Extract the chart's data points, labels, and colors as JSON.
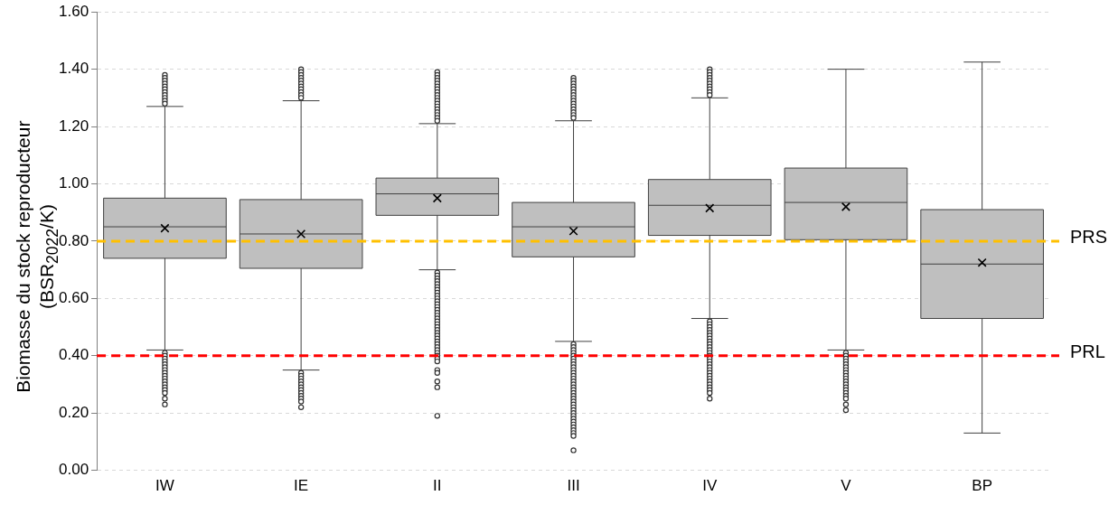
{
  "chart_data": {
    "type": "box",
    "ylabel": "Biomasse du stock reproducteur (BSR$_{2022}$/K)",
    "categories": [
      "IW",
      "IE",
      "II",
      "III",
      "IV",
      "V",
      "BP"
    ],
    "series": [
      {
        "color": "#bfbfbf",
        "boxes": [
          {
            "low": 0.42,
            "q1": 0.74,
            "median": 0.85,
            "q3": 0.95,
            "high": 1.27,
            "mean": 0.845,
            "outliers": [
              1.38,
              1.37,
              1.36,
              1.35,
              1.34,
              1.33,
              1.32,
              1.31,
              1.3,
              1.29,
              1.28,
              0.41,
              0.4,
              0.39,
              0.38,
              0.37,
              0.36,
              0.35,
              0.34,
              0.33,
              0.32,
              0.31,
              0.3,
              0.29,
              0.28,
              0.27,
              0.25,
              0.23
            ]
          },
          {
            "low": 0.35,
            "q1": 0.705,
            "median": 0.825,
            "q3": 0.945,
            "high": 1.29,
            "mean": 0.825,
            "outliers": [
              1.4,
              1.39,
              1.38,
              1.37,
              1.36,
              1.35,
              1.34,
              1.33,
              1.32,
              1.31,
              1.3,
              0.34,
              0.33,
              0.32,
              0.31,
              0.3,
              0.29,
              0.28,
              0.27,
              0.26,
              0.25,
              0.24,
              0.22
            ]
          },
          {
            "low": 0.7,
            "q1": 0.89,
            "median": 0.965,
            "q3": 1.02,
            "high": 1.21,
            "mean": 0.95,
            "outliers": [
              1.39,
              1.38,
              1.37,
              1.36,
              1.35,
              1.34,
              1.33,
              1.32,
              1.31,
              1.3,
              1.29,
              1.28,
              1.27,
              1.26,
              1.25,
              1.24,
              1.23,
              1.22,
              0.69,
              0.68,
              0.67,
              0.66,
              0.65,
              0.64,
              0.63,
              0.62,
              0.61,
              0.6,
              0.59,
              0.58,
              0.57,
              0.56,
              0.55,
              0.54,
              0.53,
              0.52,
              0.51,
              0.5,
              0.49,
              0.48,
              0.47,
              0.46,
              0.45,
              0.44,
              0.43,
              0.42,
              0.41,
              0.4,
              0.39,
              0.38,
              0.35,
              0.34,
              0.31,
              0.29,
              0.19
            ]
          },
          {
            "low": 0.45,
            "q1": 0.745,
            "median": 0.85,
            "q3": 0.935,
            "high": 1.22,
            "mean": 0.835,
            "outliers": [
              1.37,
              1.36,
              1.35,
              1.34,
              1.33,
              1.32,
              1.31,
              1.3,
              1.29,
              1.28,
              1.27,
              1.26,
              1.25,
              1.24,
              1.23,
              0.44,
              0.43,
              0.42,
              0.41,
              0.4,
              0.39,
              0.38,
              0.37,
              0.36,
              0.35,
              0.34,
              0.33,
              0.32,
              0.31,
              0.3,
              0.29,
              0.28,
              0.27,
              0.26,
              0.25,
              0.24,
              0.23,
              0.22,
              0.21,
              0.2,
              0.19,
              0.18,
              0.17,
              0.16,
              0.15,
              0.14,
              0.13,
              0.12,
              0.07
            ]
          },
          {
            "low": 0.53,
            "q1": 0.82,
            "median": 0.925,
            "q3": 1.015,
            "high": 1.3,
            "mean": 0.915,
            "outliers": [
              1.4,
              1.39,
              1.38,
              1.37,
              1.36,
              1.35,
              1.34,
              1.33,
              1.32,
              1.31,
              0.52,
              0.51,
              0.5,
              0.49,
              0.48,
              0.47,
              0.46,
              0.45,
              0.44,
              0.43,
              0.42,
              0.41,
              0.4,
              0.39,
              0.38,
              0.37,
              0.36,
              0.35,
              0.34,
              0.33,
              0.32,
              0.31,
              0.3,
              0.29,
              0.28,
              0.27,
              0.25
            ]
          },
          {
            "low": 0.42,
            "q1": 0.805,
            "median": 0.935,
            "q3": 1.055,
            "high": 1.4,
            "mean": 0.92,
            "outliers": [
              0.41,
              0.4,
              0.39,
              0.38,
              0.37,
              0.36,
              0.35,
              0.34,
              0.33,
              0.32,
              0.31,
              0.3,
              0.29,
              0.28,
              0.27,
              0.26,
              0.25,
              0.23,
              0.21
            ]
          },
          {
            "low": 0.13,
            "q1": 0.53,
            "median": 0.72,
            "q3": 0.91,
            "high": 1.425,
            "mean": 0.725
          }
        ]
      }
    ],
    "ylim": [
      0,
      1.6
    ],
    "yticks": [
      {
        "value": 0,
        "label": "0.00"
      },
      {
        "value": 0.2,
        "label": "0.20"
      },
      {
        "value": 0.4,
        "label": "0.40"
      },
      {
        "value": 0.6,
        "label": "0.60"
      },
      {
        "value": 0.8,
        "label": "0.80"
      },
      {
        "value": 1.0,
        "label": "1.00"
      },
      {
        "value": 1.2,
        "label": "1.20"
      },
      {
        "value": 1.4,
        "label": "1.40"
      },
      {
        "value": 1.6,
        "label": "1.60"
      }
    ],
    "ref_lines": [
      {
        "axis": "y",
        "value": 0.8,
        "label": "PRS",
        "color": "#ffc000",
        "line_style": "dashed"
      },
      {
        "axis": "y",
        "value": 0.4,
        "label": "PRL",
        "color": "#ff0000",
        "line_style": "dashed"
      }
    ],
    "grid": "y",
    "marker": "circle"
  }
}
